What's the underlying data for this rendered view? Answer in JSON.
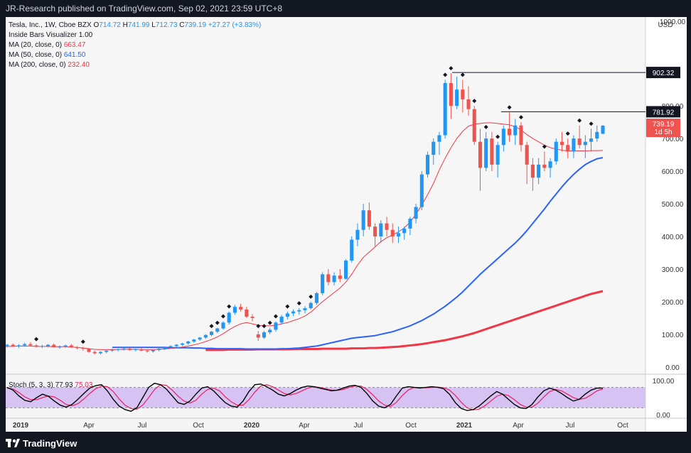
{
  "header": {
    "published": "JR-Research published on TradingView.com, Sep 02, 2021 23:59 UTC+8"
  },
  "footer": {
    "brand": "TradingView"
  },
  "legend": {
    "symbol": "Tesla, Inc., 1W, Cboe BZX",
    "ohlc": [
      {
        "key": "O",
        "value": "714.72"
      },
      {
        "key": "H",
        "value": "741.99"
      },
      {
        "key": "L",
        "value": "712.73"
      },
      {
        "key": "C",
        "value": "739.19"
      }
    ],
    "change": "+27.27 (+3.83%)",
    "indicators": [
      {
        "label": "Inside Bars Visualizer",
        "value": "1.00",
        "color": "#131722"
      },
      {
        "label": "MA (20, close, 0)",
        "value": "663.47",
        "color": "#f23645"
      },
      {
        "label": "MA (50, close, 0)",
        "value": "641.50",
        "color": "#2962ff"
      },
      {
        "label": "MA (200, close, 0)",
        "value": "232.40",
        "color": "#f23645"
      }
    ],
    "stoch_label": "Stoch (5, 3, 3)",
    "stoch_k": "77.93",
    "stoch_d": "75.03"
  },
  "chart_data": {
    "type": "candlestick",
    "currency": "USD",
    "x_ticks": [
      "2019",
      "Apr",
      "Jul",
      "Oct",
      "2020",
      "Apr",
      "Jul",
      "Oct",
      "2021",
      "Apr",
      "Jul",
      "Oct"
    ],
    "y_ticks": [
      "0.00",
      "100.00",
      "200.00",
      "300.00",
      "400.00",
      "500.00",
      "600.00",
      "700.00",
      "800.00",
      "1000.00"
    ],
    "ylim": [
      -20,
      1020
    ],
    "horizontal_lines": [
      {
        "value": 902.32,
        "label": "902.32"
      },
      {
        "value": 781.92,
        "label": "781.92"
      }
    ],
    "last_price": {
      "value": 739.19,
      "label": "739.19",
      "countdown": "1d 5h"
    },
    "candles": [
      [
        65,
        70,
        60,
        68
      ],
      [
        68,
        72,
        62,
        64
      ],
      [
        64,
        70,
        58,
        66
      ],
      [
        66,
        74,
        62,
        70
      ],
      [
        70,
        76,
        64,
        66
      ],
      [
        66,
        70,
        60,
        62
      ],
      [
        62,
        68,
        58,
        64
      ],
      [
        64,
        70,
        60,
        68
      ],
      [
        68,
        72,
        62,
        60
      ],
      [
        60,
        66,
        56,
        62
      ],
      [
        62,
        68,
        58,
        66
      ],
      [
        66,
        70,
        58,
        60
      ],
      [
        60,
        64,
        54,
        58
      ],
      [
        58,
        62,
        50,
        56
      ],
      [
        56,
        58,
        44,
        46
      ],
      [
        46,
        50,
        38,
        42
      ],
      [
        42,
        48,
        38,
        46
      ],
      [
        46,
        52,
        42,
        50
      ],
      [
        50,
        56,
        46,
        52
      ],
      [
        52,
        56,
        48,
        54
      ],
      [
        54,
        58,
        50,
        56
      ],
      [
        56,
        60,
        50,
        52
      ],
      [
        52,
        56,
        48,
        54
      ],
      [
        54,
        58,
        48,
        50
      ],
      [
        50,
        54,
        44,
        48
      ],
      [
        48,
        54,
        44,
        52
      ],
      [
        52,
        58,
        48,
        56
      ],
      [
        56,
        62,
        52,
        60
      ],
      [
        60,
        66,
        56,
        64
      ],
      [
        64,
        70,
        60,
        68
      ],
      [
        68,
        74,
        64,
        72
      ],
      [
        72,
        80,
        68,
        78
      ],
      [
        78,
        86,
        74,
        84
      ],
      [
        84,
        92,
        80,
        90
      ],
      [
        90,
        100,
        86,
        98
      ],
      [
        98,
        110,
        94,
        108
      ],
      [
        108,
        120,
        104,
        118
      ],
      [
        118,
        140,
        114,
        136
      ],
      [
        136,
        170,
        130,
        166
      ],
      [
        166,
        190,
        160,
        184
      ],
      [
        184,
        194,
        170,
        176
      ],
      [
        176,
        184,
        150,
        154
      ],
      [
        154,
        162,
        140,
        150
      ],
      [
        100,
        110,
        80,
        90
      ],
      [
        90,
        110,
        86,
        106
      ],
      [
        106,
        120,
        100,
        114
      ],
      [
        114,
        140,
        108,
        136
      ],
      [
        136,
        160,
        130,
        154
      ],
      [
        154,
        170,
        146,
        164
      ],
      [
        164,
        176,
        156,
        170
      ],
      [
        170,
        180,
        160,
        174
      ],
      [
        174,
        186,
        164,
        180
      ],
      [
        180,
        200,
        176,
        196
      ],
      [
        196,
        230,
        190,
        226
      ],
      [
        226,
        290,
        220,
        284
      ],
      [
        284,
        300,
        250,
        260
      ],
      [
        260,
        290,
        250,
        280
      ],
      [
        280,
        300,
        260,
        270
      ],
      [
        270,
        330,
        268,
        326
      ],
      [
        326,
        400,
        320,
        390
      ],
      [
        390,
        440,
        370,
        420
      ],
      [
        420,
        500,
        400,
        480
      ],
      [
        480,
        504,
        420,
        430
      ],
      [
        430,
        440,
        370,
        400
      ],
      [
        400,
        450,
        380,
        440
      ],
      [
        440,
        460,
        400,
        420
      ],
      [
        420,
        440,
        380,
        400
      ],
      [
        400,
        430,
        380,
        410
      ],
      [
        410,
        430,
        390,
        424
      ],
      [
        424,
        460,
        404,
        454
      ],
      [
        454,
        500,
        440,
        490
      ],
      [
        490,
        600,
        480,
        590
      ],
      [
        590,
        660,
        580,
        650
      ],
      [
        650,
        700,
        620,
        690
      ],
      [
        690,
        720,
        650,
        710
      ],
      [
        710,
        880,
        700,
        870
      ],
      [
        870,
        900,
        760,
        800
      ],
      [
        800,
        890,
        790,
        850
      ],
      [
        850,
        880,
        780,
        820
      ],
      [
        820,
        860,
        770,
        790
      ],
      [
        790,
        800,
        680,
        690
      ],
      [
        690,
        730,
        540,
        610
      ],
      [
        610,
        720,
        600,
        700
      ],
      [
        700,
        720,
        600,
        620
      ],
      [
        620,
        690,
        580,
        680
      ],
      [
        680,
        740,
        660,
        730
      ],
      [
        730,
        780,
        690,
        710
      ],
      [
        710,
        760,
        680,
        740
      ],
      [
        740,
        750,
        660,
        680
      ],
      [
        680,
        690,
        560,
        620
      ],
      [
        620,
        640,
        540,
        580
      ],
      [
        580,
        640,
        560,
        620
      ],
      [
        620,
        660,
        600,
        610
      ],
      [
        610,
        640,
        580,
        630
      ],
      [
        630,
        700,
        620,
        690
      ],
      [
        690,
        720,
        660,
        680
      ],
      [
        680,
        700,
        640,
        660
      ],
      [
        660,
        710,
        640,
        700
      ],
      [
        700,
        740,
        670,
        680
      ],
      [
        680,
        710,
        640,
        690
      ],
      [
        690,
        730,
        660,
        700
      ],
      [
        700,
        740,
        690,
        720
      ],
      [
        714.72,
        741.99,
        712.73,
        739.19
      ]
    ],
    "ma20": [
      62,
      63,
      63,
      64,
      64,
      64,
      63,
      63,
      63,
      62,
      62,
      62,
      61,
      60,
      58,
      56,
      54,
      53,
      53,
      53,
      53,
      54,
      54,
      54,
      53,
      53,
      53,
      54,
      55,
      57,
      59,
      61,
      64,
      68,
      72,
      78,
      84,
      92,
      102,
      114,
      124,
      132,
      136,
      132,
      128,
      126,
      126,
      128,
      132,
      136,
      142,
      148,
      156,
      168,
      184,
      200,
      214,
      228,
      242,
      260,
      284,
      312,
      336,
      352,
      368,
      384,
      396,
      404,
      414,
      426,
      444,
      468,
      496,
      528,
      562,
      604,
      640,
      672,
      700,
      722,
      738,
      744,
      746,
      748,
      748,
      746,
      744,
      742,
      736,
      726,
      712,
      700,
      690,
      680,
      672,
      668,
      664,
      662,
      662,
      662,
      662,
      663,
      663,
      663.47
    ],
    "ma50": [
      60,
      60,
      60,
      60,
      60,
      60,
      60,
      60,
      60,
      60,
      59,
      59,
      59,
      59,
      58,
      58,
      57,
      57,
      56,
      56,
      56,
      56,
      56,
      55,
      55,
      55,
      55,
      55,
      55,
      56,
      56,
      57,
      58,
      60,
      62,
      64,
      68,
      72,
      76,
      80,
      84,
      88,
      90,
      92,
      94,
      96,
      100,
      104,
      108,
      114,
      120,
      126,
      134,
      142,
      152,
      162,
      174,
      186,
      200,
      214,
      230,
      248,
      266,
      284,
      300,
      316,
      332,
      348,
      364,
      380,
      398,
      418,
      440,
      462,
      484,
      508,
      530,
      552,
      572,
      590,
      606,
      620,
      630,
      638,
      641.5
    ],
    "ma200": [
      52,
      52,
      52,
      52,
      53,
      53,
      53,
      53,
      53,
      54,
      54,
      54,
      54,
      54,
      54,
      55,
      55,
      55,
      55,
      55,
      56,
      56,
      56,
      56,
      56,
      57,
      57,
      57,
      58,
      58,
      59,
      60,
      61,
      62,
      64,
      66,
      68,
      70,
      73,
      76,
      79,
      82,
      86,
      90,
      94,
      99,
      104,
      110,
      116,
      122,
      128,
      134,
      140,
      146,
      152,
      158,
      164,
      170,
      176,
      182,
      188,
      194,
      200,
      206,
      212,
      218,
      224,
      228,
      232.4
    ],
    "stoch_k": [
      80,
      72,
      55,
      42,
      38,
      50,
      60,
      54,
      40,
      28,
      22,
      30,
      45,
      62,
      78,
      85,
      88,
      70,
      45,
      25,
      15,
      10,
      20,
      50,
      80,
      92,
      88,
      75,
      55,
      35,
      30,
      40,
      60,
      78,
      82,
      70,
      52,
      35,
      25,
      22,
      40,
      68,
      88,
      90,
      82,
      72,
      60,
      55,
      62,
      72,
      80,
      84,
      82,
      78,
      74,
      70,
      72,
      78,
      84,
      86,
      80,
      62,
      40,
      25,
      20,
      30,
      55,
      78,
      82,
      80,
      78,
      80,
      82,
      80,
      76,
      60,
      35,
      18,
      12,
      15,
      25,
      40,
      55,
      68,
      60,
      45,
      30,
      20,
      18,
      30,
      52,
      70,
      78,
      72,
      62,
      50,
      40,
      45,
      60,
      72,
      78,
      77.93
    ],
    "stoch_d": [
      78,
      75,
      65,
      52,
      44,
      44,
      50,
      55,
      52,
      42,
      30,
      26,
      32,
      46,
      62,
      76,
      84,
      82,
      68,
      46,
      28,
      18,
      16,
      28,
      50,
      74,
      88,
      86,
      72,
      54,
      40,
      34,
      42,
      60,
      74,
      78,
      70,
      52,
      38,
      28,
      28,
      44,
      66,
      84,
      88,
      82,
      72,
      62,
      58,
      62,
      70,
      78,
      82,
      80,
      76,
      72,
      71,
      74,
      80,
      84,
      84,
      74,
      58,
      40,
      28,
      24,
      36,
      56,
      72,
      80,
      80,
      79,
      80,
      81,
      79,
      72,
      56,
      36,
      20,
      14,
      16,
      26,
      40,
      54,
      60,
      56,
      44,
      30,
      22,
      22,
      34,
      52,
      68,
      74,
      70,
      60,
      50,
      45,
      48,
      58,
      70,
      75.03
    ],
    "stoch_range": [
      0,
      100
    ],
    "stoch_ticks": [
      "100.00",
      "0.00"
    ],
    "colors": {
      "up": "#2196f3",
      "down": "#ef5350",
      "ma20": "#f23645",
      "ma50": "#2962ff",
      "ma200": "#f23645",
      "stoch_k": "#000000",
      "stoch_d": "#e91e63",
      "stoch_band": "#d7c3f3"
    }
  }
}
